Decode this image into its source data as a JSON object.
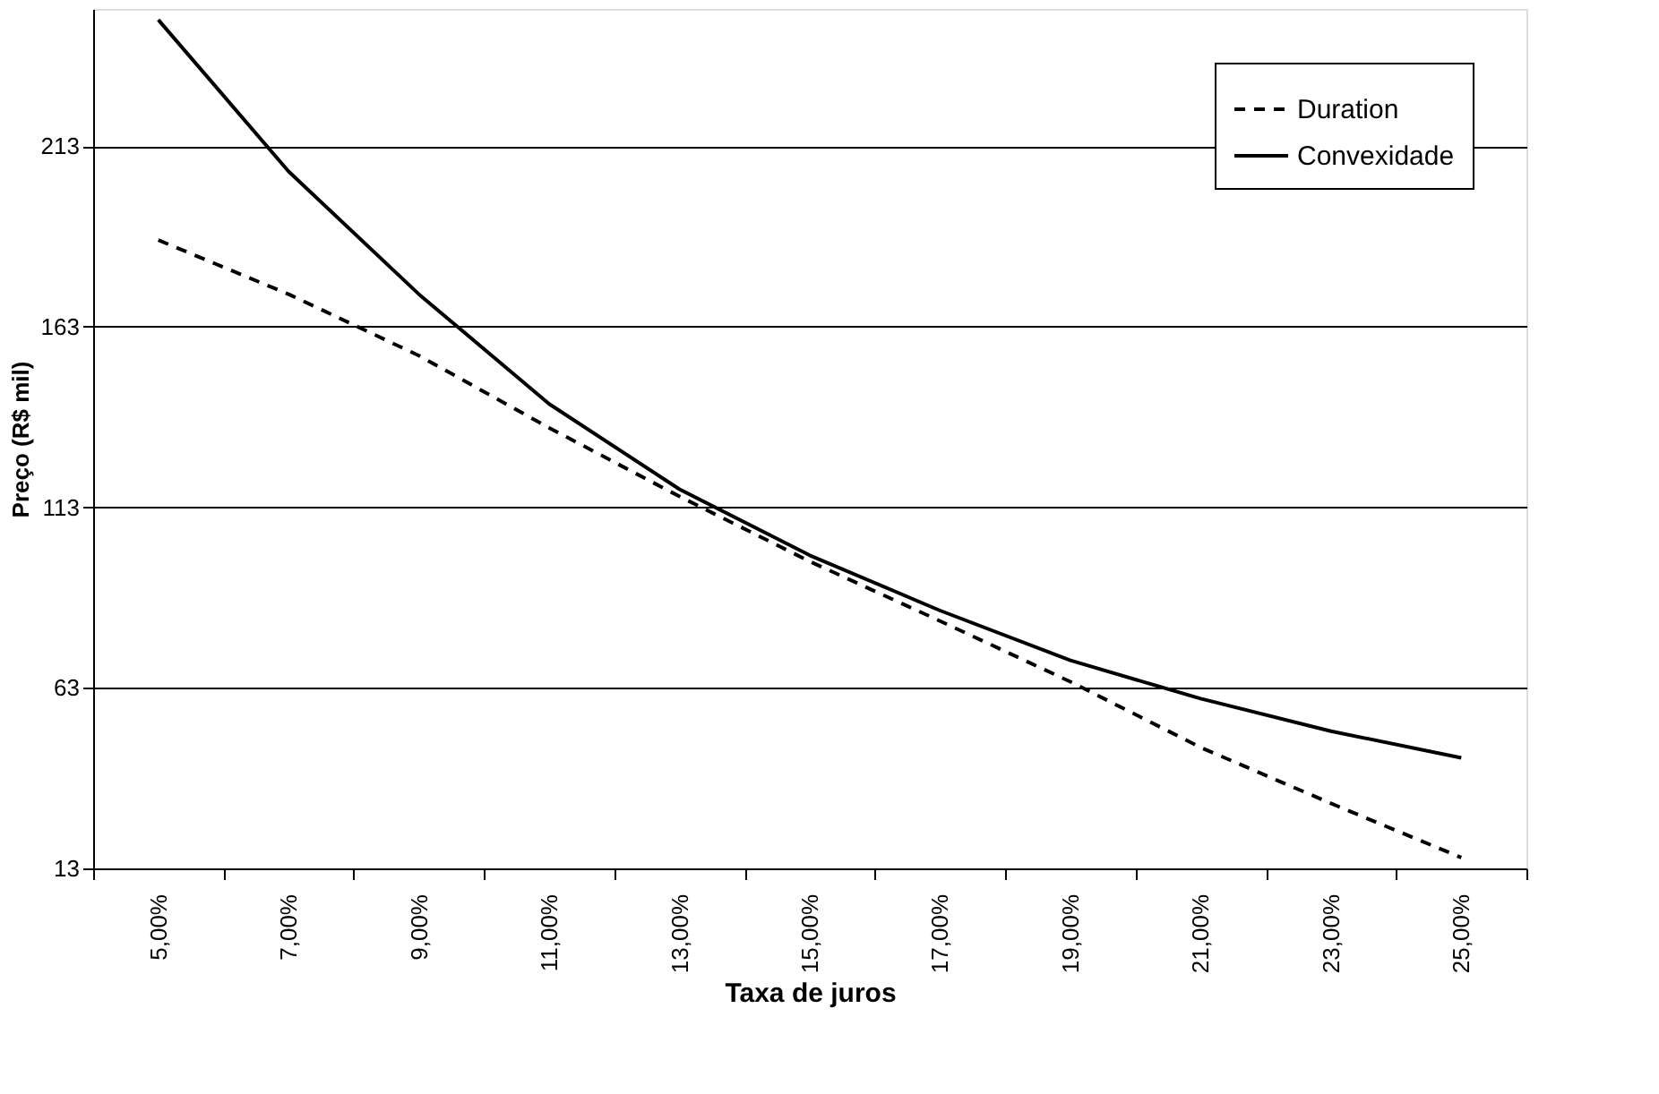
{
  "chart_data": {
    "type": "line",
    "xlabel": "Taxa de juros",
    "ylabel": "Preço (R$ mil)",
    "categories": [
      "5,00%",
      "7,00%",
      "9,00%",
      "11,00%",
      "13,00%",
      "15,00%",
      "17,00%",
      "19,00%",
      "21,00%",
      "23,00%",
      "25,00%"
    ],
    "series": [
      {
        "name": "Duration",
        "color": "#000000",
        "line_style": "dashed",
        "values": [
          187,
          172,
          155,
          135,
          116,
          98,
          81.5,
          64.7,
          46.5,
          31,
          16
        ]
      },
      {
        "name": "Convexidade",
        "color": "#000000",
        "line_style": "solid",
        "values": [
          248,
          206,
          172,
          141.6,
          118,
          99.7,
          84.4,
          70.6,
          60,
          51,
          43.6
        ]
      }
    ],
    "ylim": [
      13,
      251
    ],
    "yticks": [
      13,
      63,
      113,
      163,
      213
    ],
    "grid": "y",
    "legend": "top right",
    "marker": "none"
  }
}
